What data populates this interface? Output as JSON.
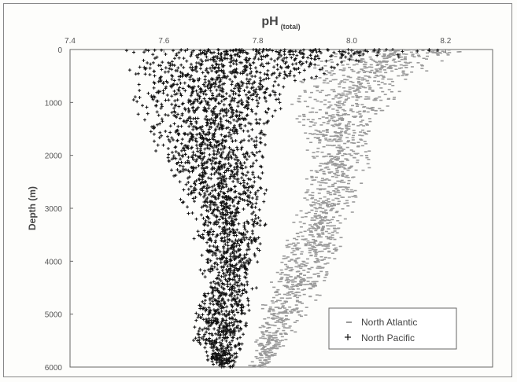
{
  "chart_data": {
    "type": "scatter",
    "title": "",
    "xlabel": "pH",
    "xlabel_sub": "(total)",
    "ylabel": "Depth (m)",
    "xlim": [
      7.4,
      8.3
    ],
    "ylim": [
      0,
      6000
    ],
    "y_inverted": true,
    "x_axis_position": "top",
    "x_ticks": [
      {
        "value": 7.4,
        "label": "7.4"
      },
      {
        "value": 7.6,
        "label": "7.6"
      },
      {
        "value": 7.8,
        "label": "7.8"
      },
      {
        "value": 8.0,
        "label": "8.0"
      },
      {
        "value": 8.2,
        "label": "8.2"
      }
    ],
    "y_ticks": [
      {
        "value": 0,
        "label": "0"
      },
      {
        "value": 1000,
        "label": "1000"
      },
      {
        "value": 2000,
        "label": "2000"
      },
      {
        "value": 3000,
        "label": "3000"
      },
      {
        "value": 4000,
        "label": "4000"
      },
      {
        "value": 5000,
        "label": "5000"
      },
      {
        "value": 6000,
        "label": "6000"
      }
    ],
    "grid": false,
    "legend_position": "bottom-right",
    "series": [
      {
        "name": "North Atlantic",
        "marker": "dash",
        "color": "#9a9a9a",
        "profile": [
          {
            "depth": 0,
            "ph_min": 7.95,
            "ph_max": 8.28
          },
          {
            "depth": 200,
            "ph_min": 7.92,
            "ph_max": 8.22
          },
          {
            "depth": 500,
            "ph_min": 7.89,
            "ph_max": 8.14
          },
          {
            "depth": 1000,
            "ph_min": 7.86,
            "ph_max": 8.1
          },
          {
            "depth": 1500,
            "ph_min": 7.88,
            "ph_max": 8.06
          },
          {
            "depth": 2000,
            "ph_min": 7.9,
            "ph_max": 8.05
          },
          {
            "depth": 2500,
            "ph_min": 7.9,
            "ph_max": 8.03
          },
          {
            "depth": 3000,
            "ph_min": 7.88,
            "ph_max": 8.01
          },
          {
            "depth": 3500,
            "ph_min": 7.86,
            "ph_max": 7.99
          },
          {
            "depth": 4000,
            "ph_min": 7.84,
            "ph_max": 7.97
          },
          {
            "depth": 4500,
            "ph_min": 7.82,
            "ph_max": 7.95
          },
          {
            "depth": 5000,
            "ph_min": 7.8,
            "ph_max": 7.91
          },
          {
            "depth": 5500,
            "ph_min": 7.79,
            "ph_max": 7.87
          },
          {
            "depth": 6000,
            "ph_min": 7.78,
            "ph_max": 7.82
          }
        ]
      },
      {
        "name": "North Pacific",
        "marker": "plus",
        "color": "#111111",
        "profile": [
          {
            "depth": 0,
            "ph_min": 7.45,
            "ph_max": 8.25
          },
          {
            "depth": 200,
            "ph_min": 7.48,
            "ph_max": 8.05
          },
          {
            "depth": 500,
            "ph_min": 7.5,
            "ph_max": 7.95
          },
          {
            "depth": 1000,
            "ph_min": 7.52,
            "ph_max": 7.86
          },
          {
            "depth": 1500,
            "ph_min": 7.55,
            "ph_max": 7.84
          },
          {
            "depth": 2000,
            "ph_min": 7.58,
            "ph_max": 7.83
          },
          {
            "depth": 2500,
            "ph_min": 7.62,
            "ph_max": 7.83
          },
          {
            "depth": 3000,
            "ph_min": 7.64,
            "ph_max": 7.82
          },
          {
            "depth": 3500,
            "ph_min": 7.66,
            "ph_max": 7.82
          },
          {
            "depth": 4000,
            "ph_min": 7.67,
            "ph_max": 7.81
          },
          {
            "depth": 4500,
            "ph_min": 7.67,
            "ph_max": 7.8
          },
          {
            "depth": 5000,
            "ph_min": 7.66,
            "ph_max": 7.79
          },
          {
            "depth": 5500,
            "ph_min": 7.66,
            "ph_max": 7.78
          },
          {
            "depth": 6000,
            "ph_min": 7.7,
            "ph_max": 7.75
          }
        ]
      }
    ]
  }
}
